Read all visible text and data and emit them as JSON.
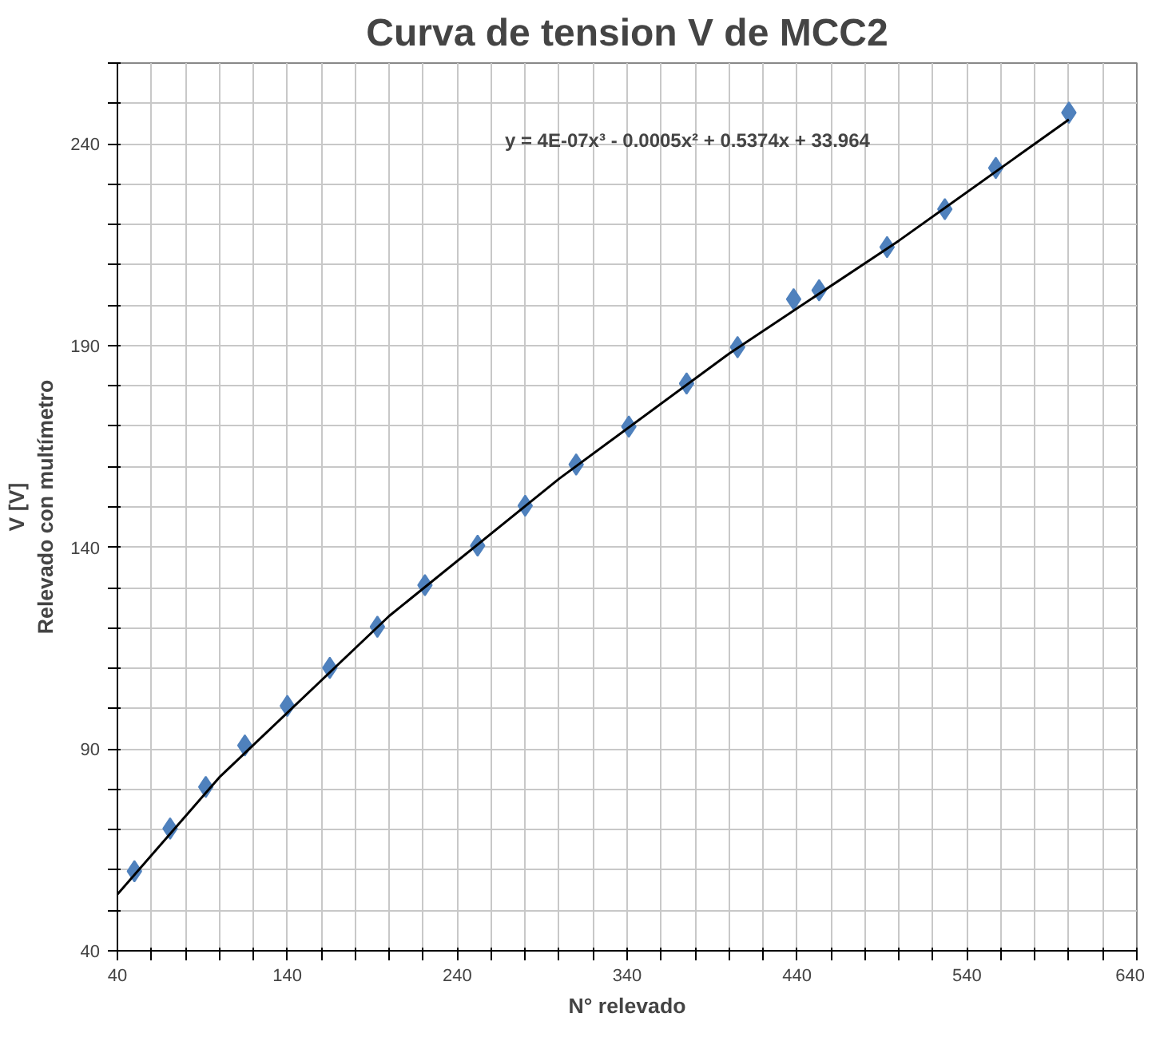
{
  "chart_data": {
    "type": "scatter",
    "title": "Curva de tension V de MCC2",
    "xlabel": "N° relevado",
    "ylabel": "V [V]\nRelevado con multímetro",
    "annotations": [
      "y = 4E-07x³ - 0.0005x² + 0.5374x + 33.964"
    ],
    "marker": "diamond",
    "grid": true,
    "xlim": [
      40,
      640
    ],
    "ylim": [
      40,
      260
    ],
    "xticks": [
      40,
      {
        "value": 60,
        "label": null
      },
      {
        "value": 80,
        "label": null
      },
      {
        "value": 100,
        "label": null
      },
      {
        "value": 120,
        "label": null
      },
      140,
      {
        "value": 160,
        "label": null
      },
      {
        "value": 180,
        "label": null
      },
      {
        "value": 200,
        "label": null
      },
      {
        "value": 220,
        "label": null
      },
      240,
      {
        "value": 260,
        "label": null
      },
      {
        "value": 280,
        "label": null
      },
      {
        "value": 300,
        "label": null
      },
      {
        "value": 320,
        "label": null
      },
      340,
      {
        "value": 360,
        "label": null
      },
      {
        "value": 380,
        "label": null
      },
      {
        "value": 400,
        "label": null
      },
      {
        "value": 420,
        "label": null
      },
      440,
      {
        "value": 460,
        "label": null
      },
      {
        "value": 480,
        "label": null
      },
      {
        "value": 500,
        "label": null
      },
      {
        "value": 520,
        "label": null
      },
      540,
      {
        "value": 560,
        "label": null
      },
      {
        "value": 580,
        "label": null
      },
      {
        "value": 600,
        "label": null
      },
      {
        "value": 620,
        "label": null
      },
      640
    ],
    "yticks": [
      40,
      {
        "value": 50,
        "label": null
      },
      {
        "value": 60,
        "label": null
      },
      {
        "value": 70,
        "label": null
      },
      {
        "value": 80,
        "label": null
      },
      90,
      {
        "value": 100,
        "label": null
      },
      {
        "value": 110,
        "label": null
      },
      {
        "value": 120,
        "label": null
      },
      {
        "value": 130,
        "label": null
      },
      140,
      {
        "value": 150,
        "label": null
      },
      {
        "value": 160,
        "label": null
      },
      {
        "value": 170,
        "label": null
      },
      {
        "value": 180,
        "label": null
      },
      190,
      {
        "value": 200,
        "label": null
      },
      {
        "value": 210,
        "label": null
      },
      {
        "value": 220,
        "label": null
      },
      {
        "value": 230,
        "label": null
      },
      240,
      {
        "value": 250,
        "label": null
      },
      {
        "value": 260,
        "label": null
      }
    ],
    "series": [
      {
        "color": "#4f81bd",
        "x": [
          50,
          71,
          92,
          115,
          140,
          165,
          193,
          221,
          252,
          280,
          310,
          341,
          375,
          405,
          438,
          453,
          493,
          527,
          557,
          600
        ],
        "values": [
          59.7,
          70.3,
          80.6,
          90.9,
          100.7,
          110.1,
          120.3,
          130.6,
          140.4,
          150.3,
          160.5,
          169.9,
          180.6,
          189.6,
          201.5,
          203.7,
          214.4,
          223.8,
          234.0,
          247.7
        ]
      },
      {
        "type": "line",
        "color": "#000000",
        "marker": "none",
        "x": [
          40,
          100,
          200,
          300,
          400,
          500,
          600
        ],
        "values": [
          54,
          83,
          123,
          157,
          188,
          216,
          246
        ]
      }
    ]
  }
}
